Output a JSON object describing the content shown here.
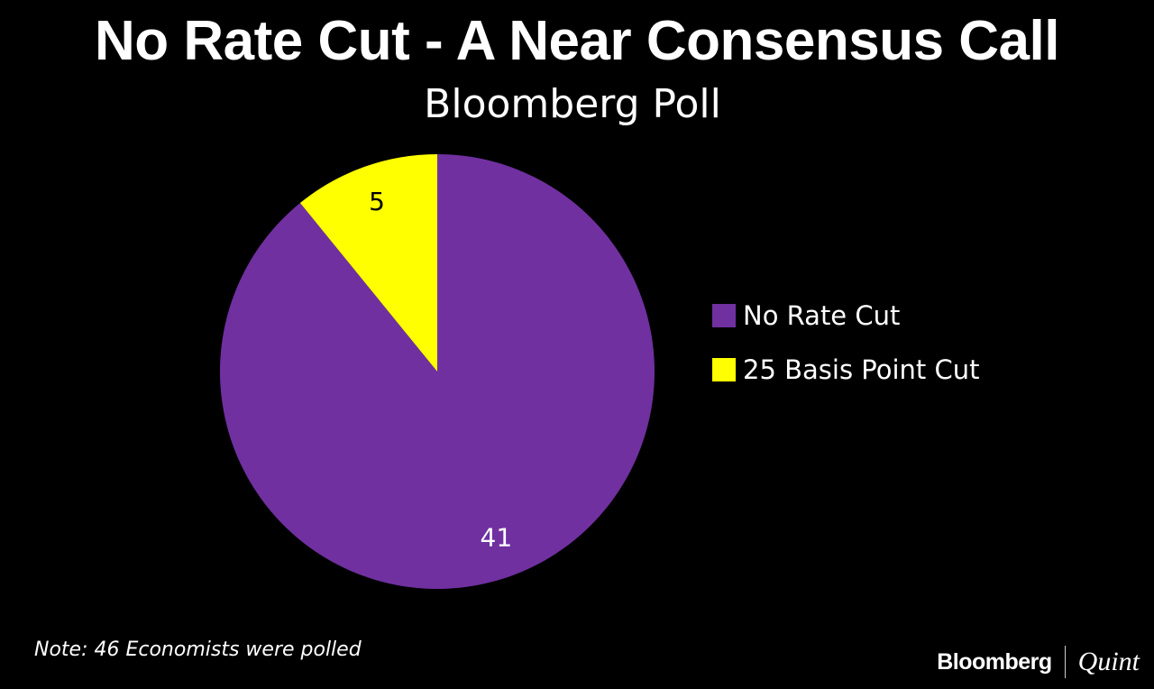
{
  "chart_data": {
    "type": "pie",
    "title": "No Rate Cut - A Near Consensus Call",
    "subtitle": "Bloomberg Poll",
    "categories": [
      "No Rate Cut",
      "25 Basis Point Cut"
    ],
    "values": [
      41,
      5
    ],
    "value_labels": [
      "41",
      "5"
    ],
    "colors": [
      "#7030a0",
      "#ffff00"
    ],
    "label_colors": [
      "#ffffff",
      "#000000"
    ],
    "start_angle_deg": 0,
    "direction": "clockwise",
    "legend_position": "right"
  },
  "note": "Note: 46 Economists were polled",
  "branding": {
    "primary": "Bloomberg",
    "secondary": "Quint"
  }
}
